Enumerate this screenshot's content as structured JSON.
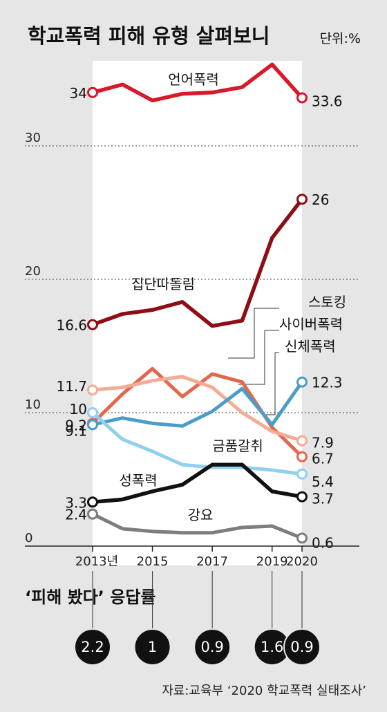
{
  "chart_data": {
    "type": "line",
    "title": "학교폭력 피해 유형 살펴보니",
    "unit": "단위:%",
    "x": [
      2013,
      2014,
      2015,
      2016,
      2017,
      2018,
      2019,
      2020
    ],
    "x_tick_labels": [
      "2013년",
      "2015",
      "2017",
      "2019",
      "2020"
    ],
    "x_tick_values": [
      2013,
      2015,
      2017,
      2019,
      2020
    ],
    "y_tick_labels": [
      "0",
      "10",
      "20",
      "30"
    ],
    "y_tick_values": [
      0,
      10,
      20,
      30
    ],
    "ylim": [
      0,
      36
    ],
    "series": [
      {
        "name": "언어폭력",
        "color": "#d7192a",
        "values": [
          34,
          34.6,
          33.4,
          33.9,
          34.0,
          34.4,
          36.1,
          33.6
        ],
        "start_label": "34",
        "end_label": "33.6"
      },
      {
        "name": "집단따돌림",
        "color": "#8e0e16",
        "values": [
          16.6,
          17.4,
          17.7,
          18.3,
          16.5,
          16.9,
          23.1,
          26
        ],
        "start_label": "16.6",
        "end_label": "26"
      },
      {
        "name": "스토킹",
        "color": "#e4664c",
        "values": [
          9.2,
          11.4,
          13.3,
          11.2,
          12.9,
          12.3,
          8.9,
          6.7
        ],
        "start_label": "9.2",
        "end_label": "6.7"
      },
      {
        "name": "사이버폭력",
        "color": "#f3ab94",
        "values": [
          11.7,
          11.9,
          12.4,
          12.7,
          11.9,
          10.0,
          8.6,
          7.9
        ],
        "start_label": "11.7",
        "end_label": "7.9"
      },
      {
        "name": "신체폭력",
        "color": "#4a9dc8",
        "values": [
          9.1,
          9.6,
          9.2,
          9.0,
          10.1,
          11.8,
          9.1,
          12.3
        ],
        "start_label": "9.1",
        "end_label": "12.3"
      },
      {
        "name": "금품갈취",
        "color": "#8fd0ee",
        "values": [
          10,
          8.0,
          7.1,
          6.1,
          5.9,
          5.9,
          5.7,
          5.4
        ],
        "start_label": "10",
        "end_label": "5.4"
      },
      {
        "name": "성폭력",
        "color": "#111111",
        "values": [
          3.3,
          3.5,
          4.1,
          4.6,
          6.1,
          6.1,
          4.1,
          3.7
        ],
        "start_label": "3.3",
        "end_label": "3.7"
      },
      {
        "name": "강요",
        "color": "#7d7d80",
        "values": [
          2.4,
          1.3,
          1.1,
          1.0,
          1.0,
          1.4,
          1.5,
          0.6
        ],
        "start_label": "2.4",
        "end_label": "0.6"
      }
    ],
    "response_rate": {
      "title": "‘피해 봤다’ 응답률",
      "years": [
        2013,
        2015,
        2017,
        2019,
        2020
      ],
      "values": [
        "2.2",
        "1",
        "0.9",
        "1.6",
        "0.9"
      ]
    },
    "source": "자료:교육부 ‘2020 학교폭력 실태조사’"
  }
}
